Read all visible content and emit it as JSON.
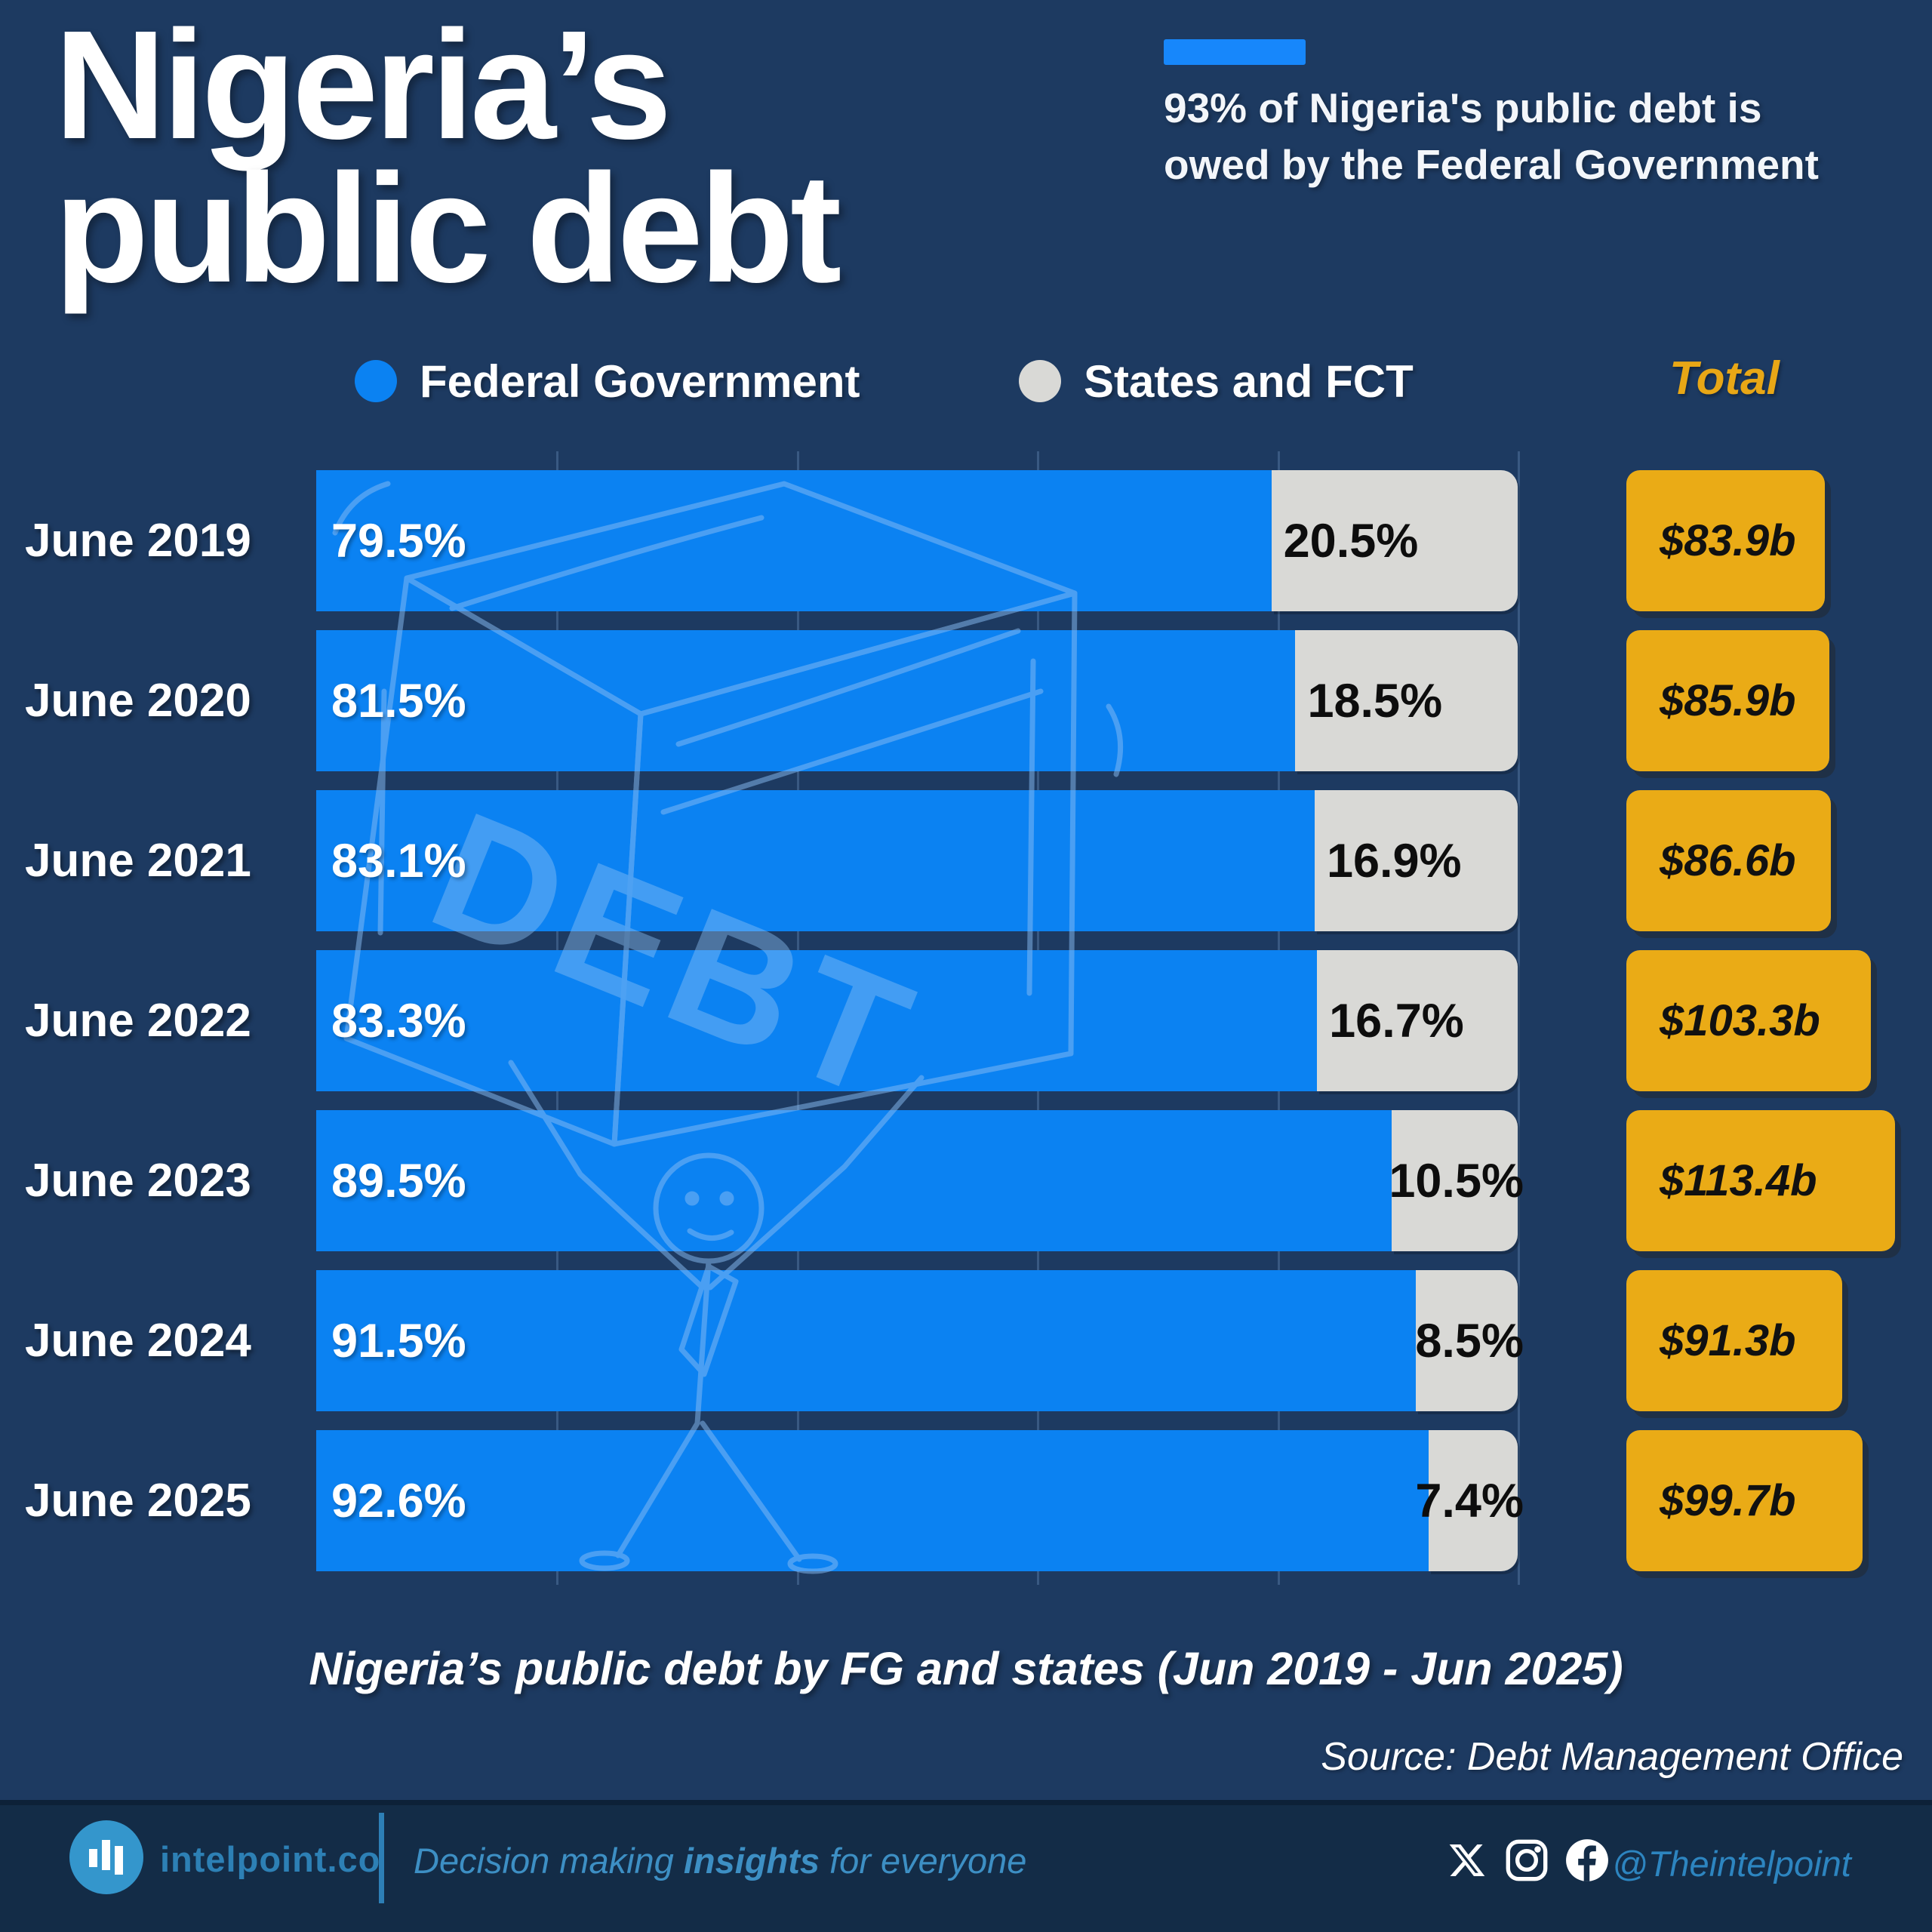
{
  "title": {
    "line1": "Nigeria’s",
    "line2": "public debt"
  },
  "highlight": "93% of Nigeria's public debt is owed by the Federal Government",
  "legend": {
    "fg": "Federal Government",
    "states": "States and FCT",
    "total": "Total"
  },
  "chart_data": {
    "type": "bar",
    "orientation": "horizontal",
    "stacked": true,
    "title": "Nigeria’s public debt by FG and states (Jun 2019 - Jun 2025)",
    "categories": [
      "June 2019",
      "June 2020",
      "June 2021",
      "June 2022",
      "June 2023",
      "June 2024",
      "June 2025"
    ],
    "series": [
      {
        "name": "Federal Government",
        "color": "#0b82f2",
        "unit": "%",
        "values": [
          79.5,
          81.5,
          83.1,
          83.3,
          89.5,
          91.5,
          92.6
        ]
      },
      {
        "name": "States and FCT",
        "color": "#d9d9d6",
        "unit": "%",
        "values": [
          20.5,
          18.5,
          16.9,
          16.7,
          10.5,
          8.5,
          7.4
        ]
      }
    ],
    "states_label_align": [
      "left",
      "left",
      "left",
      "left",
      "right",
      "right",
      "right"
    ],
    "totals": {
      "label": "Total",
      "display": [
        "$83.9b",
        "$85.9b",
        "$86.6b",
        "$103.3b",
        "$113.4b",
        "$91.3b",
        "$99.7b"
      ],
      "numeric": [
        83.9,
        85.9,
        86.6,
        103.3,
        113.4,
        91.3,
        99.7
      ],
      "unit": "USD billions"
    },
    "xlim": [
      0,
      100
    ],
    "gridlines": [
      20,
      40,
      60,
      80,
      100
    ],
    "legend_position": "top"
  },
  "watermark_text": "DEBT",
  "caption": "Nigeria’s public debt by FG and states (Jun 2019 - Jun 2025)",
  "source": "Source: Debt Management Office",
  "footer": {
    "brand": "intelpoint.co",
    "tagline_prefix": "Decision making ",
    "tagline_bold": "insights",
    "tagline_suffix": " for everyone",
    "handle": "@Theintelpoint",
    "icons": [
      "x-twitter",
      "instagram",
      "facebook"
    ]
  },
  "colors": {
    "background": "#1d3a61",
    "footer_background": "#132c47",
    "fg_blue": "#0b82f2",
    "states_gray": "#d9d9d6",
    "total_gold": "#eaab16",
    "accent_blue": "#1787fb",
    "legend_total_text": "#e8a716",
    "footer_text_blue": "#2d80b5",
    "watermark_blue": "#8abdf4"
  }
}
